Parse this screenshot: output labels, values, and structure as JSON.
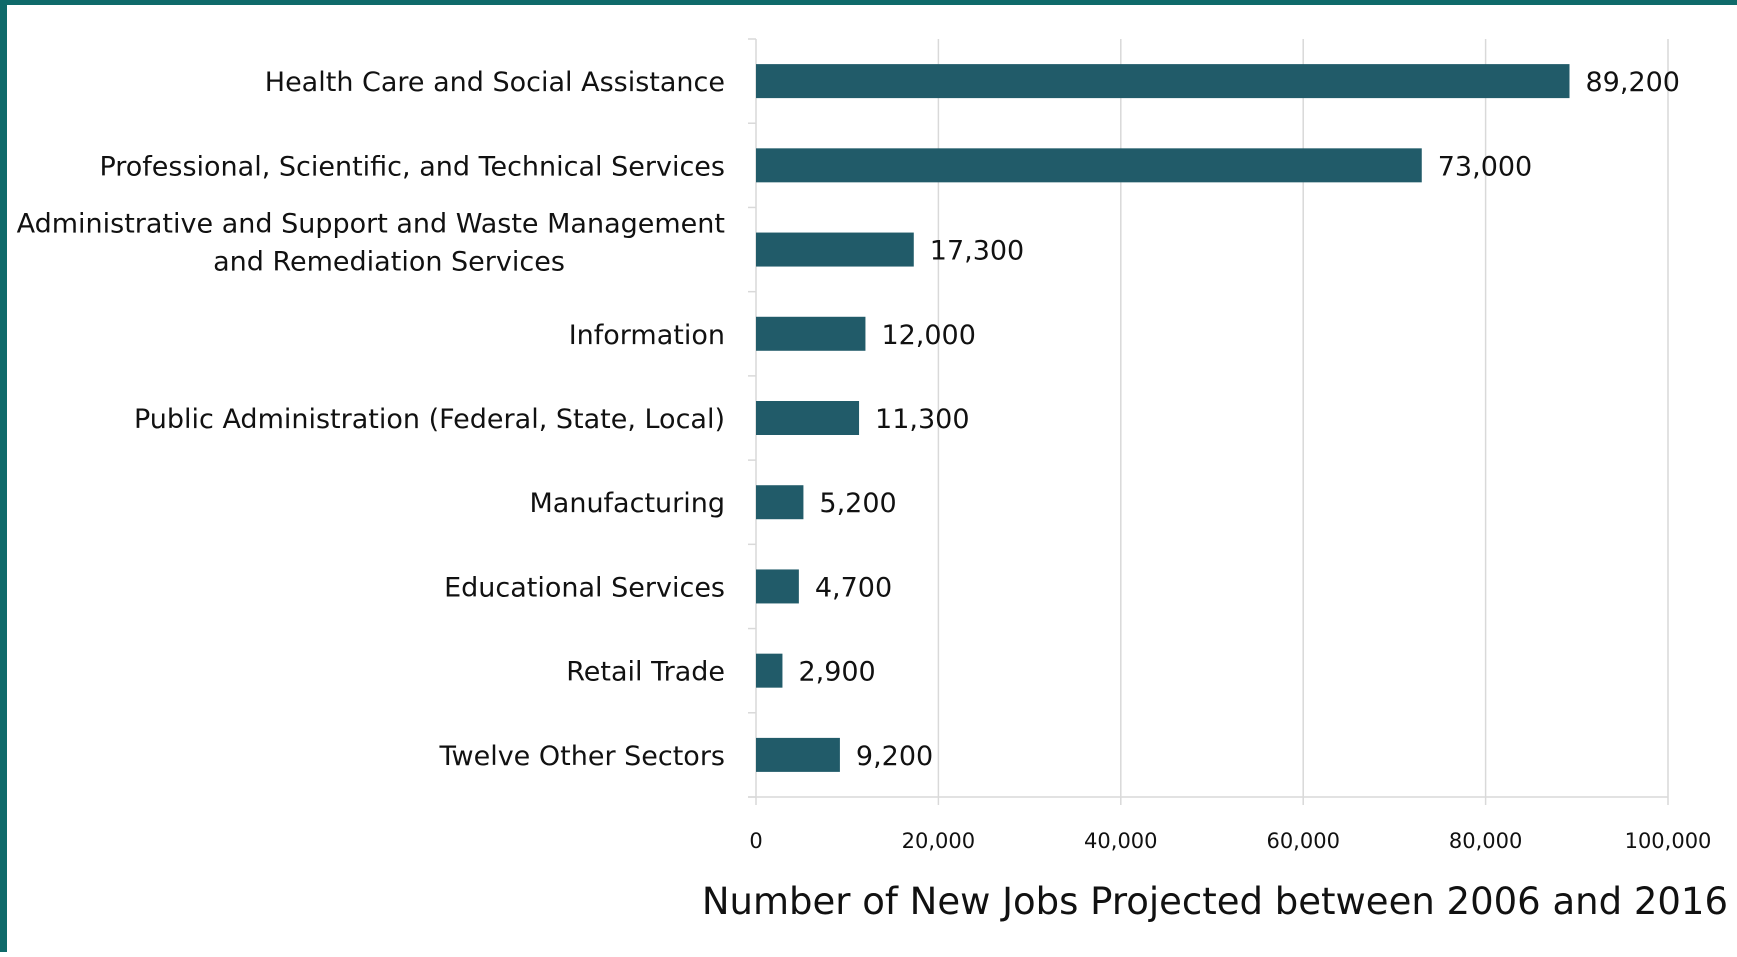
{
  "chart_data": {
    "type": "bar",
    "orientation": "horizontal",
    "categories": [
      [
        "Health Care and Social Assistance"
      ],
      [
        "Professional, Scientific, and Technical Services"
      ],
      [
        "Administrative and Support and Waste Management",
        "and Remediation Services"
      ],
      [
        "Information"
      ],
      [
        "Public Administration (Federal, State, Local)"
      ],
      [
        "Manufacturing"
      ],
      [
        "Educational Services"
      ],
      [
        "Retail Trade"
      ],
      [
        "Twelve Other Sectors"
      ]
    ],
    "values": [
      89200,
      73000,
      17300,
      12000,
      11300,
      5200,
      4700,
      2900,
      9200
    ],
    "value_labels": [
      "89,200",
      "73,000",
      "17,300",
      "12,000",
      "11,300",
      "5,200",
      "4,700",
      "2,900",
      "9,200"
    ],
    "xlim": [
      0,
      100000
    ],
    "xticks": [
      0,
      20000,
      40000,
      60000,
      80000,
      100000
    ],
    "xtick_labels": [
      "0",
      "20,000",
      "40,000",
      "60,000",
      "80,000",
      "100,000"
    ],
    "xlabel": "Number of New Jobs Projected between 2006 and 2016",
    "ylabel": "",
    "grid": "vertical",
    "legend": "none",
    "colors": {
      "bar": "#215b69",
      "frame": "#0f6a6a",
      "grid": "#d9d9d9",
      "axis": "#d9d9d9"
    }
  }
}
